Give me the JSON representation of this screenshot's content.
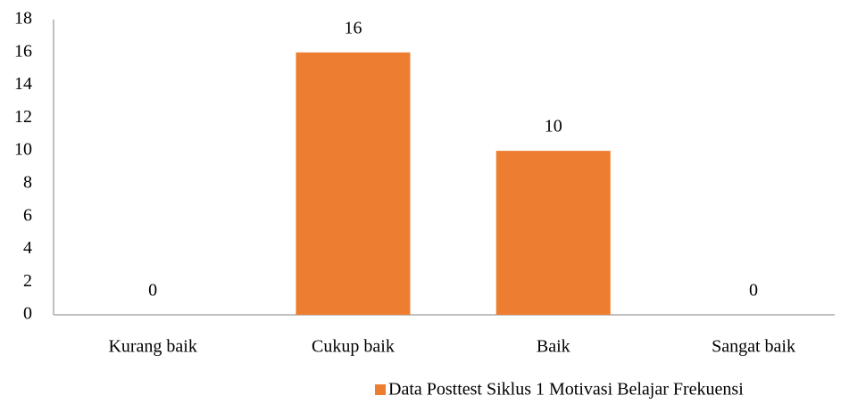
{
  "chart_data": {
    "type": "bar",
    "categories": [
      "Kurang baik",
      "Cukup baik",
      "Baik",
      "Sangat baik"
    ],
    "series": [
      {
        "name": "Data Posttest Siklus 1 Motivasi Belajar Frekuensi",
        "color": "#ed7d31",
        "values": [
          0,
          16,
          10,
          0
        ]
      }
    ],
    "ylim": [
      0,
      18
    ],
    "yticks": [
      0,
      2,
      4,
      6,
      8,
      10,
      12,
      14,
      16,
      18
    ],
    "grid": false,
    "legend": "bottom",
    "data_labels": true
  }
}
